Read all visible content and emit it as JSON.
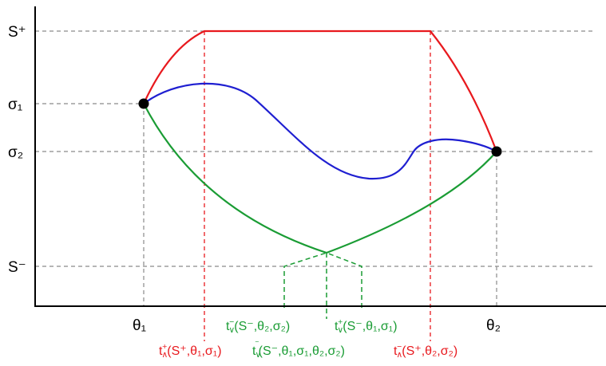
{
  "y_axis_labels": {
    "s_plus": "S⁺",
    "sigma1": "σ₁",
    "sigma2": "σ₂",
    "s_minus": "S⁻"
  },
  "x_axis_labels": {
    "theta1": "θ₁",
    "theta2": "θ₂"
  },
  "annotations": {
    "green_left": {
      "main": "t",
      "sub": "∨",
      "sup": "−",
      "args": "(S⁻,θ₂,σ₂)"
    },
    "green_right": {
      "main": "t",
      "sub": "∨",
      "sup": "+",
      "args": "(S⁻,θ₁,σ₁)"
    },
    "red_left": {
      "main": "t",
      "sub": "∧",
      "sup": "+",
      "args": "(S⁺,θ₁,σ₁)"
    },
    "green_middle": {
      "main": "t",
      "sub": "∨",
      "sup": "‾",
      "args": "(S⁻,θ₁,σ₁,θ₂,σ₂)"
    },
    "red_right": {
      "main": "t",
      "sub": "∧",
      "sup": "−",
      "args": "(S⁺,θ₂,σ₂)"
    }
  },
  "colors": {
    "red": "#e8191e",
    "green": "#1a9c34",
    "blue": "#1f1fd1",
    "grid": "#8a8a8a",
    "axis": "#000000"
  }
}
